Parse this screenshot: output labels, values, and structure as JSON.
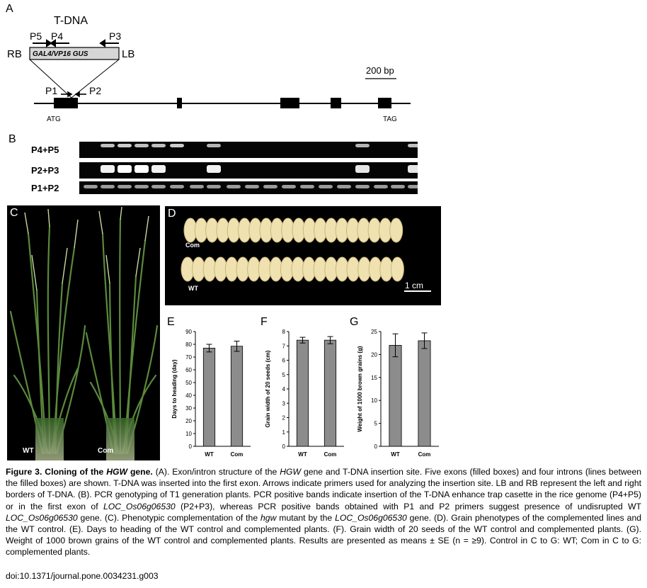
{
  "panelA": {
    "letter": "A",
    "tdna_label": "T-DNA",
    "primers": {
      "p5": "P5",
      "p4": "P4",
      "p3": "P3",
      "p1": "P1",
      "p2": "P2"
    },
    "rb": "RB",
    "lb": "LB",
    "cassette_text": "GAL4/VP16   GUS",
    "scale": "200 bp",
    "atg": "ATG",
    "tag": "TAG"
  },
  "panelB": {
    "letter": "B",
    "rows": [
      "P4+P5",
      "P2+P3",
      "P1+P2"
    ]
  },
  "panelC": {
    "letter": "C",
    "wt": "WT",
    "com": "Com"
  },
  "panelD": {
    "letter": "D",
    "com": "Com",
    "wt": "WT",
    "scale": "1 cm"
  },
  "chart_data": [
    {
      "panel": "E",
      "type": "bar",
      "categories": [
        "WT",
        "Com"
      ],
      "values": [
        77,
        78.5
      ],
      "errors": [
        3,
        4
      ],
      "ylabel": "Days to heading (day)",
      "ylim": [
        0,
        90
      ],
      "yticks": [
        "0",
        "10",
        "20",
        "30",
        "40",
        "50",
        "60",
        "70",
        "80",
        "90"
      ],
      "bar_color": "#8c8c8c"
    },
    {
      "panel": "F",
      "type": "bar",
      "categories": [
        "WT",
        "Com"
      ],
      "values": [
        7.4,
        7.4
      ],
      "errors": [
        0.2,
        0.25
      ],
      "ylabel": "Grain width of 20 seeds (cm)",
      "ylim": [
        0,
        8
      ],
      "yticks": [
        "0",
        "1",
        "2",
        "3",
        "4",
        "5",
        "6",
        "7",
        "8"
      ],
      "bar_color": "#8c8c8c"
    },
    {
      "panel": "G",
      "type": "bar",
      "categories": [
        "WT",
        "Com"
      ],
      "values": [
        22,
        23
      ],
      "errors": [
        2.5,
        1.7
      ],
      "ylabel": "Weight of 1000 brown grains (g)",
      "ylim": [
        0,
        25
      ],
      "yticks": [
        "0",
        "5",
        "10",
        "15",
        "20",
        "25"
      ],
      "bar_color": "#8c8c8c"
    }
  ],
  "caption": {
    "title_prefix": "Figure 3. Cloning of the ",
    "title_gene": "HGW",
    "title_suffix": " gene.",
    "t1": " (A). Exon/intron structure of the ",
    "t1_gene": "HGW",
    "t2": " gene and T-DNA insertion site. Five exons (filled boxes) and four introns (lines between the filled boxes) are shown. T-DNA was inserted into the first exon. Arrows indicate primers used for analyzing the insertion site. LB and RB represent the left and right borders of T-DNA. (B). PCR genotyping of T1 generation plants. PCR positive bands indicate insertion of the T-DNA enhance trap casette in the rice genome (P4+P5) or in the first exon of ",
    "t2_gene": "LOC_Os06g06530",
    "t3": " (P2+P3), whereas PCR positive bands obtained with P1 and P2 primers suggest presence of undisrupted WT ",
    "t3_gene": "LOC_Os06g06530",
    "t4": " gene. (C). Phenotypic complementation of the ",
    "t4_gene": "hgw",
    "t5": " mutant by the ",
    "t5_gene": "LOC_Os06g06530",
    "t6": " gene. (D). Grain phenotypes of the complemented lines and the WT control. (E). Days to heading of the WT control and complemented plants. (F). Grain width of 20 seeds of the WT control and complemented plants. (G). Weight of 1000 brown grains of the WT control and complemented plants. Results are presented as means ± SE (n = ≥9). Control in C to G: WT; Com in C to G: complemented plants.",
    "doi": "doi:10.1371/journal.pone.0034231.g003"
  }
}
